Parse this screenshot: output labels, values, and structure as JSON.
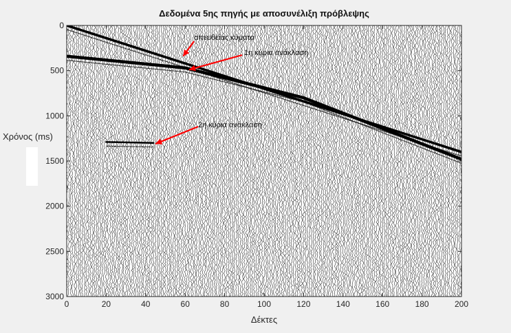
{
  "chart_data": {
    "type": "seismic_wiggle",
    "title": "Δεδομένα 5ης πηγής με αποσυνέλιξη πρόβλεψης",
    "xlabel": "Δέκτες",
    "ylabel": "Χρόνος (ms)",
    "xlim": [
      0,
      200
    ],
    "ylim": [
      0,
      3000
    ],
    "y_reversed": true,
    "xticks": [
      0,
      20,
      40,
      60,
      80,
      100,
      120,
      140,
      160,
      180,
      200
    ],
    "yticks": [
      0,
      500,
      1000,
      1500,
      2000,
      2500,
      3000
    ],
    "traces": 200,
    "grid": false,
    "events": [
      {
        "name": "απευθείας κύματα",
        "x": [
          0,
          200
        ],
        "t": [
          0,
          1400
        ]
      },
      {
        "name": "1η κύρια ανάκλαση",
        "x": [
          0,
          60,
          120,
          200
        ],
        "t": [
          340,
          470,
          800,
          1480
        ]
      },
      {
        "name": "2η κύρια ανάκλαση",
        "x": [
          20,
          44
        ],
        "t": [
          1290,
          1300
        ]
      }
    ],
    "annotations": [
      {
        "text": "απευθείας κύματα",
        "arrow_to": [
          59,
          340
        ]
      },
      {
        "text": "1η κύρια ανάκλαση",
        "arrow_to": [
          62,
          490
        ]
      },
      {
        "text": "2η κύρια ανάκλαση",
        "arrow_to": [
          45,
          1310
        ]
      }
    ],
    "colors": {
      "wiggle": "#000000",
      "arrow": "#ff0000",
      "background": "#ffffff"
    }
  }
}
